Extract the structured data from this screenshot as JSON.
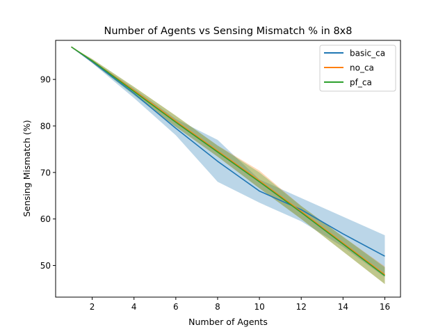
{
  "chart_data": {
    "type": "line",
    "title": "Number of Agents vs Sensing Mismatch % in 8x8",
    "xlabel": "Number of Agents",
    "ylabel": "Sensing Mismatch (%)",
    "xlim": [
      0.25,
      16.75
    ],
    "ylim": [
      43.2,
      98.4
    ],
    "x_ticks": [
      2,
      4,
      6,
      8,
      10,
      12,
      14,
      16
    ],
    "y_ticks": [
      50,
      60,
      70,
      80,
      90
    ],
    "x_tick_labels": [
      "2",
      "4",
      "6",
      "8",
      "10",
      "12",
      "14",
      "16"
    ],
    "y_tick_labels": [
      "50",
      "60",
      "70",
      "80",
      "90"
    ],
    "grid": false,
    "legend_position": "top-right",
    "x": [
      1,
      2,
      4,
      6,
      8,
      10,
      12,
      14,
      16
    ],
    "series": [
      {
        "name": "basic_ca",
        "color": "#1f77b4",
        "values": [
          97,
          93.8,
          87,
          79.5,
          72.4,
          66.0,
          62.0,
          56.8,
          52.0
        ],
        "lower": [
          97,
          93.5,
          86.0,
          78.0,
          68.0,
          63.5,
          59.5,
          54.0,
          47.5
        ],
        "upper": [
          97,
          94.2,
          88.0,
          81.5,
          77.0,
          68.5,
          64.5,
          60.5,
          56.5
        ]
      },
      {
        "name": "no_ca",
        "color": "#ff7f0e",
        "values": [
          97,
          94.0,
          87.6,
          81.0,
          74.6,
          68.2,
          61.6,
          54.8,
          48.0
        ],
        "lower": [
          97,
          93.6,
          86.8,
          79.8,
          73.4,
          66.6,
          60.0,
          53.0,
          46.0
        ],
        "upper": [
          97,
          94.4,
          88.4,
          82.2,
          75.8,
          70.4,
          62.8,
          56.2,
          49.8
        ]
      },
      {
        "name": "pf_ca",
        "color": "#2ca02c",
        "values": [
          97,
          94.0,
          87.4,
          80.8,
          74.4,
          68.0,
          61.4,
          54.6,
          47.8
        ],
        "lower": [
          97,
          93.6,
          86.6,
          79.8,
          73.4,
          66.6,
          60.0,
          53.0,
          46.0
        ],
        "upper": [
          97,
          94.4,
          88.4,
          82.2,
          75.8,
          70.0,
          62.8,
          56.2,
          49.6
        ]
      }
    ]
  }
}
